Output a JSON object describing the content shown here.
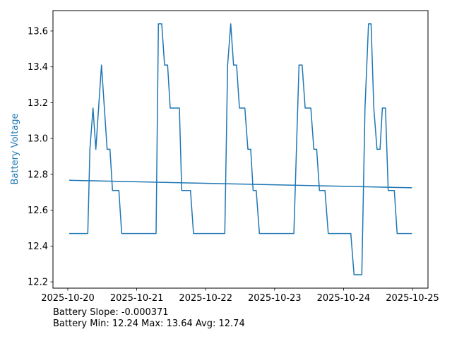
{
  "chart_data": {
    "type": "line",
    "title": "",
    "xlabel": "",
    "ylabel": "Battery Voltage",
    "ylabel_color": "#1f77b4",
    "line_color": "#1f77b4",
    "x_unit": "days since 2025-10-20",
    "xlim": [
      -0.215,
      5.225
    ],
    "ylim": [
      12.165,
      13.714
    ],
    "x_ticks": [
      {
        "value": 0,
        "label": "2025-10-20"
      },
      {
        "value": 1,
        "label": "2025-10-21"
      },
      {
        "value": 2,
        "label": "2025-10-22"
      },
      {
        "value": 3,
        "label": "2025-10-23"
      },
      {
        "value": 4,
        "label": "2025-10-24"
      },
      {
        "value": 5,
        "label": "2025-10-25"
      }
    ],
    "y_ticks": [
      {
        "value": 12.2,
        "label": "12.2"
      },
      {
        "value": 12.4,
        "label": "12.4"
      },
      {
        "value": 12.6,
        "label": "12.6"
      },
      {
        "value": 12.8,
        "label": "12.8"
      },
      {
        "value": 13.0,
        "label": "13.0"
      },
      {
        "value": 13.2,
        "label": "13.2"
      },
      {
        "value": 13.4,
        "label": "13.4"
      },
      {
        "value": 13.6,
        "label": "13.6"
      }
    ],
    "series": [
      {
        "name": "Battery Voltage",
        "x": [
          0.02,
          0.29,
          0.321,
          0.366,
          0.407,
          0.489,
          0.571,
          0.612,
          0.649,
          0.741,
          0.782,
          1.281,
          1.315,
          1.363,
          1.404,
          1.448,
          1.486,
          1.619,
          1.653,
          1.78,
          1.824,
          2.278,
          2.319,
          2.364,
          2.405,
          2.449,
          2.49,
          2.569,
          2.613,
          2.654,
          2.688,
          2.733,
          2.78,
          3.279,
          3.354,
          3.399,
          3.443,
          3.525,
          3.569,
          3.61,
          3.65,
          3.73,
          3.778,
          4.105,
          4.152,
          4.265,
          4.311,
          4.362,
          4.399,
          4.439,
          4.485,
          4.529,
          4.563,
          4.608,
          4.648,
          4.736,
          4.777,
          4.993
        ],
        "y": [
          12.47,
          12.47,
          12.94,
          13.17,
          12.94,
          13.41,
          12.94,
          12.94,
          12.71,
          12.71,
          12.47,
          12.47,
          13.64,
          13.64,
          13.41,
          13.41,
          13.17,
          13.17,
          12.71,
          12.71,
          12.47,
          12.47,
          13.41,
          13.64,
          13.41,
          13.41,
          13.17,
          13.17,
          12.94,
          12.94,
          12.71,
          12.71,
          12.47,
          12.47,
          13.41,
          13.41,
          13.17,
          13.17,
          12.94,
          12.94,
          12.71,
          12.71,
          12.47,
          12.47,
          12.24,
          12.24,
          13.17,
          13.64,
          13.64,
          13.17,
          12.94,
          12.94,
          13.17,
          13.17,
          12.71,
          12.71,
          12.47,
          12.47
        ]
      },
      {
        "name": "Trend",
        "x": [
          0.02,
          4.993
        ],
        "y": [
          12.767,
          12.725
        ]
      }
    ],
    "annotations": [
      "Battery Slope: -0.000371",
      "Battery Min: 12.24 Max: 13.64 Avg: 12.74"
    ],
    "grid": false,
    "legend": "none"
  }
}
